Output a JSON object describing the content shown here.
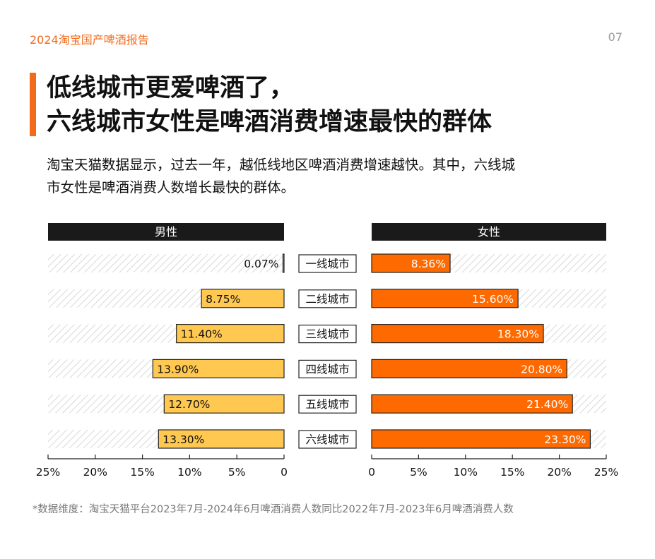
{
  "header": {
    "report_tag": "2024淘宝国产啤酒报告",
    "page_number": "07"
  },
  "title": {
    "line1": "低线城市更爱啤酒了，",
    "line2": "六线城市女性是啤酒消费增速最快的群体"
  },
  "subtitle": {
    "line1": "淘宝天猫数据显示，过去一年，越低线地区啤酒消费增速越快。其中，六线城",
    "line2": "市女性是啤酒消费人数增长最快的群体。"
  },
  "footnote": "*数据维度：淘宝天猫平台2023年7月-2024年6月啤酒消费人数同比2022年7月-2023年6月啤酒消费人数",
  "colors": {
    "male": "#ffc850",
    "female": "#ff6a00",
    "header_bar": "#1a1a1a",
    "hatch": "#cfcfcf"
  },
  "chart_data": {
    "type": "bar",
    "layout": "butterfly",
    "categories": [
      "一线城市",
      "二线城市",
      "三线城市",
      "四线城市",
      "五线城市",
      "六线城市"
    ],
    "series": [
      {
        "name": "男性",
        "values": [
          0.07,
          8.75,
          11.4,
          13.9,
          12.7,
          13.3
        ],
        "labels": [
          "0.07%",
          "8.75%",
          "11.40%",
          "13.90%",
          "12.70%",
          "13.30%"
        ]
      },
      {
        "name": "女性",
        "values": [
          8.36,
          15.6,
          18.3,
          20.8,
          21.4,
          23.3
        ],
        "labels": [
          "8.36%",
          "15.60%",
          "18.30%",
          "20.80%",
          "21.40%",
          "23.30%"
        ]
      }
    ],
    "xlim": [
      0,
      25
    ],
    "male_ticks": [
      "25%",
      "20%",
      "15%",
      "10%",
      "5%",
      "0"
    ],
    "female_ticks": [
      "0",
      "5%",
      "10%",
      "15%",
      "20%",
      "25%"
    ],
    "grid": false
  }
}
